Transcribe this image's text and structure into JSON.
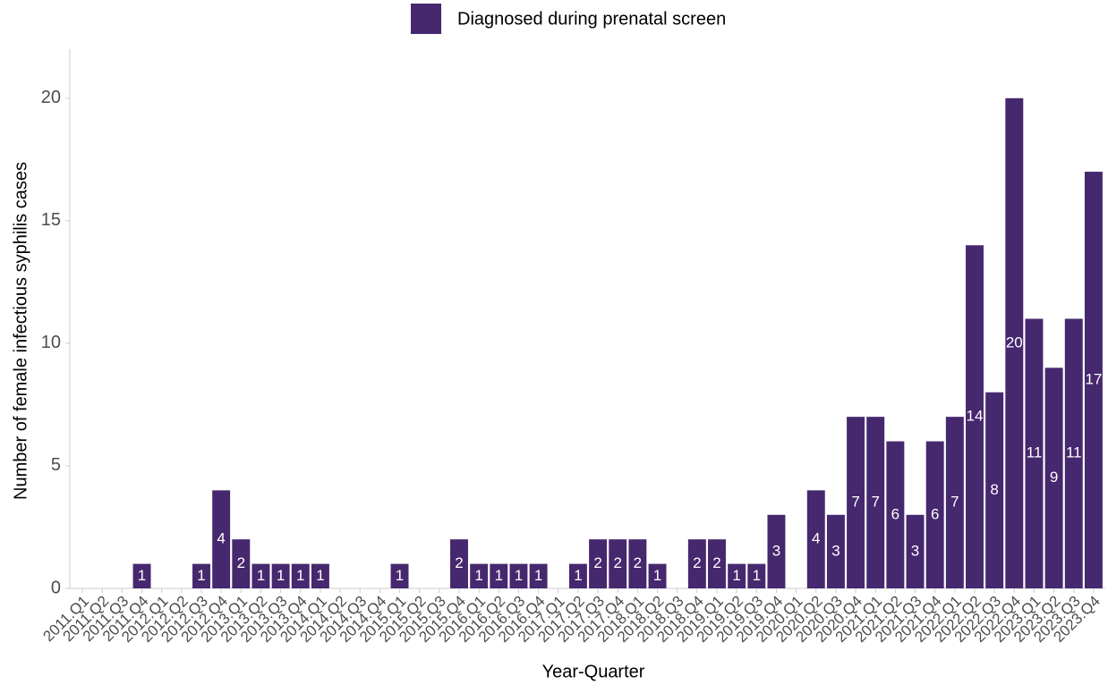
{
  "chart_data": {
    "type": "bar",
    "x_label": "Year-Quarter",
    "y_label": "Number of female infectious syphilis cases",
    "categories": [
      "2011.Q1",
      "2011.Q2",
      "2011.Q3",
      "2011.Q4",
      "2012.Q1",
      "2012.Q2",
      "2012.Q3",
      "2012.Q4",
      "2013.Q1",
      "2013.Q2",
      "2013.Q3",
      "2013.Q4",
      "2014.Q1",
      "2014.Q2",
      "2014.Q3",
      "2014.Q4",
      "2015.Q1",
      "2015.Q2",
      "2015.Q3",
      "2015.Q4",
      "2016.Q1",
      "2016.Q2",
      "2016.Q3",
      "2016.Q4",
      "2017.Q1",
      "2017.Q2",
      "2017.Q3",
      "2017.Q4",
      "2018.Q1",
      "2018.Q2",
      "2018.Q3",
      "2018.Q4",
      "2019.Q1",
      "2019.Q2",
      "2019.Q3",
      "2019.Q4",
      "2020.Q1",
      "2020.Q2",
      "2020.Q3",
      "2020.Q4",
      "2021.Q1",
      "2021.Q2",
      "2021.Q3",
      "2021.Q4",
      "2022.Q1",
      "2022.Q2",
      "2022.Q3",
      "2022.Q4",
      "2023.Q1",
      "2023.Q2",
      "2023.Q3",
      "2023.Q4"
    ],
    "series": [
      {
        "name": "Diagnosed during prenatal screen",
        "color": "#46286e",
        "values": [
          0,
          0,
          0,
          1,
          0,
          0,
          1,
          4,
          2,
          1,
          1,
          1,
          1,
          0,
          0,
          0,
          1,
          0,
          0,
          2,
          1,
          1,
          1,
          1,
          0,
          1,
          2,
          2,
          2,
          1,
          0,
          2,
          2,
          1,
          1,
          3,
          0,
          4,
          3,
          7,
          7,
          6,
          3,
          6,
          7,
          14,
          8,
          20,
          11,
          9,
          11,
          17
        ]
      }
    ],
    "ylim": [
      0,
      22
    ],
    "yticks": [
      0,
      5,
      10,
      15,
      20
    ],
    "grid": false,
    "legend": "top"
  }
}
